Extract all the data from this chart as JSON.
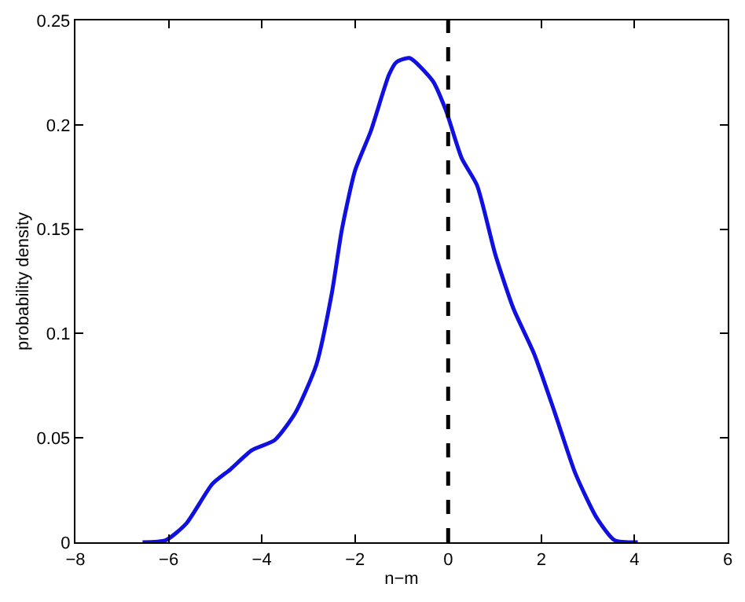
{
  "chart_data": {
    "type": "line",
    "xlabel": "n−m",
    "ylabel": "probability density",
    "x": [
      -6.56,
      -6.06,
      -5.62,
      -5.06,
      -4.67,
      -4.22,
      -3.72,
      -3.28,
      -2.83,
      -2.5,
      -2.28,
      -2.0,
      -1.66,
      -1.27,
      -1.11,
      -0.83,
      -0.33,
      -0.05,
      0.29,
      0.62,
      1.01,
      1.4,
      1.85,
      2.29,
      2.73,
      3.18,
      3.57,
      4.07
    ],
    "series": [
      {
        "color": "#1010e0",
        "values": [
          0,
          0.001,
          0.009,
          0.028,
          0.035,
          0.044,
          0.049,
          0.062,
          0.085,
          0.119,
          0.15,
          0.178,
          0.197,
          0.224,
          0.23,
          0.232,
          0.221,
          0.207,
          0.184,
          0.171,
          0.138,
          0.112,
          0.09,
          0.062,
          0.033,
          0.012,
          0.001,
          0
        ]
      }
    ],
    "xlim": [
      -8,
      6
    ],
    "xticks": [
      {
        "value": -8,
        "label": "−8"
      },
      {
        "value": -6,
        "label": "−6"
      },
      {
        "value": -4,
        "label": "−4"
      },
      {
        "value": -2,
        "label": "−2"
      },
      0,
      2,
      4,
      6
    ],
    "ylim": [
      0,
      0.25
    ],
    "yticks": [
      0,
      0.05,
      0.1,
      0.15,
      0.2,
      0.25
    ],
    "ref_lines": [
      {
        "axis": "x",
        "value": 0,
        "color": "#000000",
        "line_style": "dashed"
      }
    ],
    "marker": "none",
    "line_style": "solid"
  }
}
